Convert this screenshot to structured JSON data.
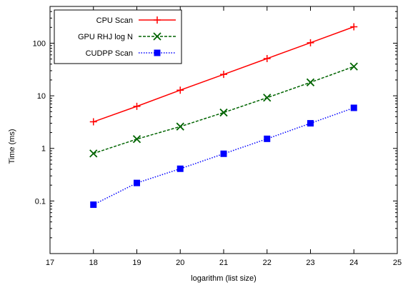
{
  "chart_data": {
    "type": "line",
    "xlabel": "logarithm (list size)",
    "ylabel": "Time (ms)",
    "xlim": [
      17,
      25
    ],
    "ylim": [
      0.01,
      500
    ],
    "yscale": "log",
    "legend_position": "top-left",
    "grid": false,
    "x_ticks": [
      17,
      18,
      19,
      20,
      21,
      22,
      23,
      24,
      25
    ],
    "y_ticks": [
      0.1,
      1,
      10,
      100
    ],
    "y_tick_labels": [
      "0.1",
      "1",
      "10",
      "100"
    ],
    "series": [
      {
        "name": "CPU Scan",
        "color": "#ff0000",
        "line_style": "solid",
        "marker": "plus",
        "x": [
          18,
          19,
          20,
          21,
          22,
          23,
          24
        ],
        "y": [
          3.2,
          6.3,
          12.8,
          25.5,
          51,
          102,
          205
        ]
      },
      {
        "name": "GPU RHJ log N",
        "color": "#006400",
        "line_style": "dashed",
        "marker": "cross",
        "x": [
          18,
          19,
          20,
          21,
          22,
          23,
          24
        ],
        "y": [
          0.8,
          1.5,
          2.6,
          4.8,
          9.2,
          18,
          36
        ]
      },
      {
        "name": "CUDPP Scan",
        "color": "#0000ff",
        "line_style": "dotted",
        "marker": "square",
        "x": [
          18,
          19,
          20,
          21,
          22,
          23,
          24
        ],
        "y": [
          0.085,
          0.22,
          0.41,
          0.79,
          1.52,
          3.0,
          5.9
        ]
      }
    ]
  }
}
